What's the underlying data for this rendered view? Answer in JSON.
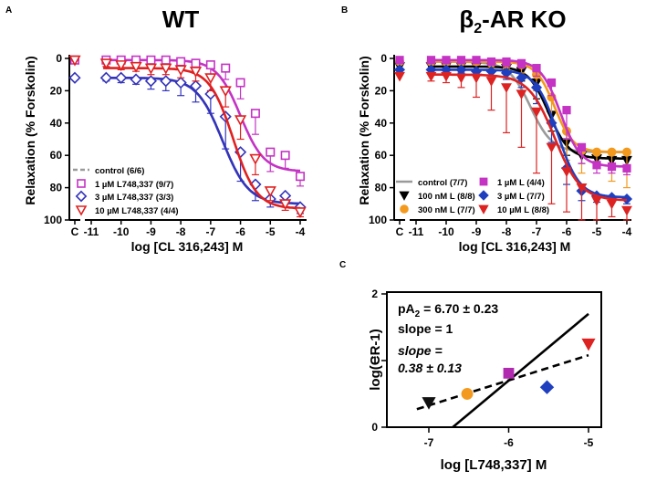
{
  "panels": {
    "a": {
      "letter": "A",
      "title": "WT",
      "ylabel": "Relaxation (% Forskolin)",
      "xlabel": "log [CL 316,243] M"
    },
    "b": {
      "letter": "B",
      "title_beta": "β",
      "title_sub": "2",
      "title_rest": "-AR KO",
      "ylabel": "Relaxation (% Forskolin)",
      "xlabel": "log [CL 316,243] M"
    },
    "c": {
      "letter": "C",
      "ylabel": "log(CR-1)",
      "xlabel": "log [L748,337] M",
      "pa2_prefix": "pA",
      "pa2_sub": "2",
      "pa2_value": " = 6.70 ± 0.23",
      "slope_line": "slope = 1",
      "slope_label": "slope =",
      "slope_value": "0.38 ± 0.13"
    }
  },
  "chart_data": [
    {
      "type": "line",
      "panel": "A",
      "title": "WT",
      "xlabel": "log [CL 316,243] M",
      "ylabel": "Relaxation (% Forskolin)",
      "ylim": [
        100,
        0
      ],
      "yticks": [
        0,
        20,
        40,
        60,
        80,
        100
      ],
      "xtick_labels": [
        "C",
        "-11",
        "-10",
        "-9",
        "-8",
        "-7",
        "-6",
        "-5",
        "-4"
      ],
      "x": [
        -10.5,
        -10,
        -9.5,
        -9,
        -8.5,
        -8,
        -7.5,
        -7,
        -6.5,
        -6,
        -5.5,
        -5,
        -4.5,
        -4
      ],
      "series": [
        {
          "name": "control (6/6)",
          "color": "#9a9a9a",
          "marker": "none",
          "style": "dashed",
          "fit": {
            "top": 12,
            "bottom": 90,
            "logec50": -6.6,
            "hill": 1.0
          }
        },
        {
          "name": "1 µM L748,337 (9/7)",
          "color": "#c433c4",
          "marker": "square",
          "control_value": 1,
          "values": [
            1,
            1,
            1,
            1,
            1,
            2,
            3,
            4,
            6,
            15,
            34,
            58,
            60,
            73
          ],
          "errors": [
            2,
            2,
            2,
            3,
            3,
            4,
            5,
            6,
            7,
            10,
            13,
            12,
            8,
            6
          ],
          "fit": {
            "top": 1,
            "bottom": 70,
            "logec50": -6.0,
            "hill": 1.1
          }
        },
        {
          "name": "3 µM L748,337 (3/3)",
          "color": "#3333bb",
          "marker": "diamond",
          "control_value": 12,
          "values": [
            12,
            12,
            13,
            14,
            14,
            15,
            17,
            22,
            36,
            58,
            78,
            87,
            85,
            92
          ],
          "errors": [
            2,
            3,
            3,
            5,
            6,
            8,
            10,
            12,
            20,
            18,
            10,
            5,
            5,
            4
          ],
          "fit": {
            "top": 12,
            "bottom": 90,
            "logec50": -6.6,
            "hill": 1.0
          }
        },
        {
          "name": "10 µM L748,337 (4/4)",
          "color": "#e02020",
          "marker": "triangle-down",
          "control_value": 1,
          "values": [
            3,
            4,
            5,
            6,
            6,
            7,
            8,
            12,
            20,
            38,
            62,
            82,
            90,
            95
          ],
          "errors": [
            2,
            3,
            3,
            4,
            4,
            5,
            6,
            8,
            10,
            12,
            10,
            6,
            4,
            3
          ],
          "fit": {
            "top": 6,
            "bottom": 93,
            "logec50": -6.25,
            "hill": 1.1
          }
        }
      ]
    },
    {
      "type": "line",
      "panel": "B",
      "title": "β2-AR KO",
      "xlabel": "log [CL 316,243] M",
      "ylabel": "Relaxation (% Forskolin)",
      "ylim": [
        100,
        0
      ],
      "yticks": [
        0,
        20,
        40,
        60,
        80,
        100
      ],
      "xtick_labels": [
        "C",
        "-11",
        "-10",
        "-9",
        "-8",
        "-7",
        "-6",
        "-5",
        "-4"
      ],
      "x": [
        -10.5,
        -10,
        -9.5,
        -9,
        -8.5,
        -8,
        -7.5,
        -7,
        -6.5,
        -6,
        -5.5,
        -5,
        -4.5,
        -4
      ],
      "series": [
        {
          "name": "control (7/7)",
          "color": "#9a9a9a",
          "marker": "none",
          "style": "solid",
          "fit": {
            "top": 2,
            "bottom": 58,
            "logec50": -7.2,
            "hill": 1.2
          }
        },
        {
          "name": "100 nM L (8/8)",
          "color": "#000000",
          "marker": "triangle-down",
          "control_value": 5,
          "values": [
            5,
            5,
            5,
            5,
            5,
            6,
            8,
            15,
            35,
            52,
            60,
            62,
            63,
            63
          ],
          "errors": [
            2,
            2,
            2,
            3,
            3,
            4,
            6,
            10,
            10,
            8,
            5,
            4,
            3,
            3
          ],
          "fit": {
            "top": 5,
            "bottom": 62,
            "logec50": -6.6,
            "hill": 1.3
          }
        },
        {
          "name": "300 nM L (7/7)",
          "color": "#f39a1e",
          "marker": "circle",
          "control_value": 2,
          "values": [
            2,
            2,
            2,
            2,
            3,
            3,
            4,
            10,
            24,
            45,
            57,
            58,
            58,
            58
          ],
          "errors": [
            2,
            2,
            2,
            2,
            3,
            3,
            5,
            10,
            14,
            18,
            14,
            10,
            18,
            22
          ],
          "fit": {
            "top": 2,
            "bottom": 58,
            "logec50": -6.4,
            "hill": 1.4
          }
        },
        {
          "name": "1 µM L (4/4)",
          "color": "#c433c4",
          "marker": "square",
          "control_value": 1,
          "values": [
            1,
            1,
            1,
            1,
            2,
            2,
            3,
            6,
            15,
            32,
            55,
            66,
            67,
            68
          ],
          "errors": [
            2,
            2,
            2,
            2,
            2,
            3,
            3,
            5,
            8,
            18,
            10,
            5,
            4,
            4
          ],
          "fit": {
            "top": 1,
            "bottom": 67,
            "logec50": -6.2,
            "hill": 1.3
          }
        },
        {
          "name": "3 µM L (7/7)",
          "color": "#1f3fbf",
          "marker": "diamond",
          "control_value": 7,
          "values": [
            7,
            7,
            7,
            8,
            8,
            9,
            12,
            18,
            40,
            68,
            82,
            85,
            86,
            87
          ],
          "errors": [
            2,
            2,
            2,
            3,
            3,
            4,
            6,
            10,
            12,
            10,
            6,
            4,
            3,
            3
          ],
          "fit": {
            "top": 7,
            "bottom": 86,
            "logec50": -6.3,
            "hill": 1.2
          }
        },
        {
          "name": "10 µM L (8/8)",
          "color": "#dd2222",
          "marker": "triangle-down",
          "control_value": 11,
          "values": [
            11,
            11,
            12,
            12,
            14,
            18,
            22,
            33,
            55,
            70,
            80,
            88,
            90,
            94
          ],
          "errors": [
            3,
            4,
            6,
            12,
            18,
            28,
            33,
            38,
            35,
            25,
            20,
            12,
            8,
            6
          ],
          "fit": {
            "top": 10,
            "bottom": 88,
            "logec50": -6.4,
            "hill": 1.0
          }
        }
      ]
    },
    {
      "type": "scatter",
      "panel": "C",
      "xlabel": "log [L748,337] M",
      "ylabel": "log(CR-1)",
      "xlim": [
        -7.5,
        -4.85
      ],
      "ylim": [
        0,
        2
      ],
      "xticks": [
        -7,
        -6,
        -5
      ],
      "yticks": [
        0,
        1,
        2
      ],
      "points": [
        {
          "x": -7.0,
          "y": 0.37,
          "color": "#111111",
          "marker": "triangle-down"
        },
        {
          "x": -6.52,
          "y": 0.5,
          "color": "#f39a1e",
          "marker": "circle"
        },
        {
          "x": -6.0,
          "y": 0.81,
          "color": "#b02ab0",
          "marker": "square"
        },
        {
          "x": -5.52,
          "y": 0.6,
          "color": "#1f3fbf",
          "marker": "diamond"
        },
        {
          "x": -5.0,
          "y": 1.25,
          "color": "#dd2222",
          "marker": "triangle-down"
        }
      ],
      "lines": [
        {
          "name": "slope = 1 (Schild)",
          "x": [
            -6.7,
            -5.0
          ],
          "y": [
            0.0,
            1.7
          ],
          "style": "solid"
        },
        {
          "name": "fitted slope 0.38",
          "x": [
            -7.15,
            -5.0
          ],
          "y": [
            0.27,
            1.08
          ],
          "style": "dashed"
        }
      ]
    }
  ]
}
